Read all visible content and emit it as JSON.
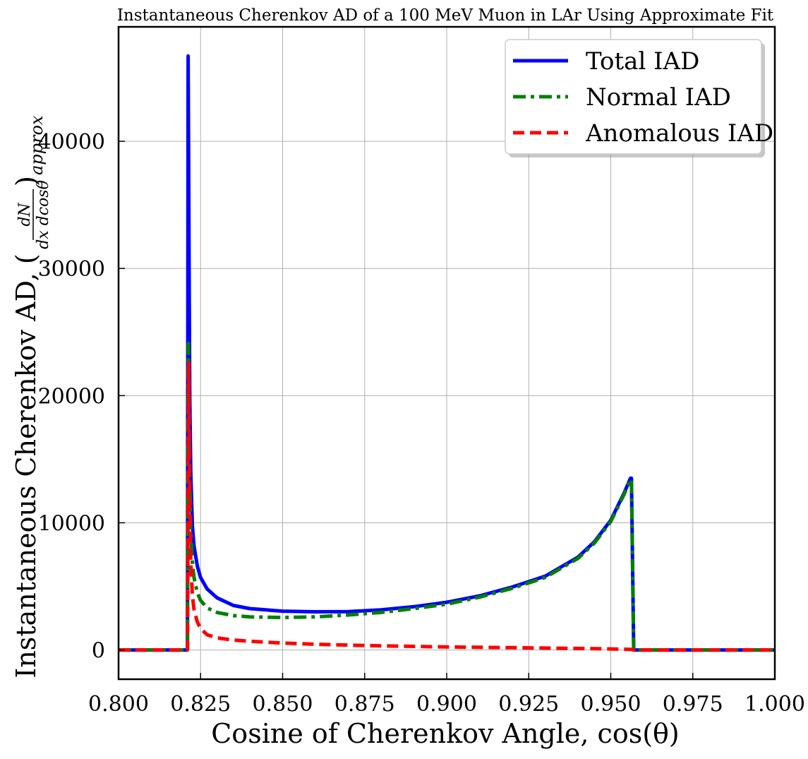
{
  "chart_data": {
    "type": "line",
    "title": "Instantaneous Cherenkov AD of a 100 MeV Muon in LAr Using Approximate Fit",
    "xlabel": "Cosine of Cherenkov Angle, cos(θ)",
    "ylabel": "Instantaneous Cherenkov AD, (dN/dx dcosθ)_approx",
    "ylabel_parts": {
      "text": "Instantaneous Cherenkov AD, (",
      "numerator": "dN",
      "denominator": "dx dcosθ",
      "close": ")",
      "subscript": "approx"
    },
    "xlim": [
      0.8,
      1.0
    ],
    "ylim": [
      -2300,
      49000
    ],
    "x_ticks": [
      "0.800",
      "0.825",
      "0.850",
      "0.875",
      "0.900",
      "0.925",
      "0.950",
      "0.975",
      "1.000"
    ],
    "y_ticks": [
      "0",
      "10000",
      "20000",
      "30000",
      "40000"
    ],
    "grid": true,
    "legend_position": "top-right",
    "series": [
      {
        "name": "Total IAD",
        "color": "#0000ff",
        "style": "solid",
        "x": [
          0.8,
          0.821,
          0.8212,
          0.8215,
          0.8217,
          0.822,
          0.8225,
          0.823,
          0.824,
          0.825,
          0.827,
          0.83,
          0.835,
          0.84,
          0.85,
          0.86,
          0.87,
          0.88,
          0.89,
          0.9,
          0.91,
          0.92,
          0.93,
          0.94,
          0.945,
          0.95,
          0.954,
          0.956,
          0.9563,
          0.957,
          1.0
        ],
        "y": [
          0,
          0,
          46700,
          30000,
          20000,
          14000,
          9800,
          8200,
          6600,
          5700,
          4800,
          4100,
          3500,
          3250,
          3050,
          3000,
          3020,
          3150,
          3400,
          3750,
          4250,
          4950,
          5800,
          7300,
          8500,
          10200,
          12300,
          13500,
          13500,
          0,
          0
        ]
      },
      {
        "name": "Normal IAD",
        "color": "#008000",
        "style": "dashdot",
        "x": [
          0.8,
          0.821,
          0.8213,
          0.8216,
          0.822,
          0.8225,
          0.823,
          0.824,
          0.825,
          0.827,
          0.83,
          0.835,
          0.84,
          0.85,
          0.86,
          0.87,
          0.88,
          0.89,
          0.9,
          0.91,
          0.92,
          0.93,
          0.94,
          0.945,
          0.95,
          0.954,
          0.956,
          0.9563,
          0.957,
          1.0
        ],
        "y": [
          0,
          0,
          24100,
          15000,
          9600,
          6900,
          5700,
          4500,
          3900,
          3300,
          2950,
          2700,
          2600,
          2550,
          2600,
          2750,
          2950,
          3250,
          3600,
          4150,
          4850,
          5700,
          7200,
          8400,
          10100,
          12200,
          13400,
          13400,
          0,
          0
        ]
      },
      {
        "name": "Anomalous IAD",
        "color": "#ff0000",
        "style": "dashed",
        "x": [
          0.8,
          0.821,
          0.8214,
          0.8217,
          0.822,
          0.8225,
          0.823,
          0.824,
          0.825,
          0.827,
          0.83,
          0.835,
          0.84,
          0.85,
          0.86,
          0.87,
          0.88,
          0.89,
          0.9,
          0.91,
          0.92,
          0.93,
          0.94,
          0.95,
          0.956,
          0.957,
          1.0
        ],
        "y": [
          0,
          0,
          22600,
          12000,
          7000,
          4300,
          3200,
          2200,
          1700,
          1200,
          950,
          780,
          680,
          550,
          450,
          380,
          320,
          280,
          240,
          210,
          180,
          150,
          120,
          80,
          50,
          0,
          0
        ]
      }
    ]
  }
}
